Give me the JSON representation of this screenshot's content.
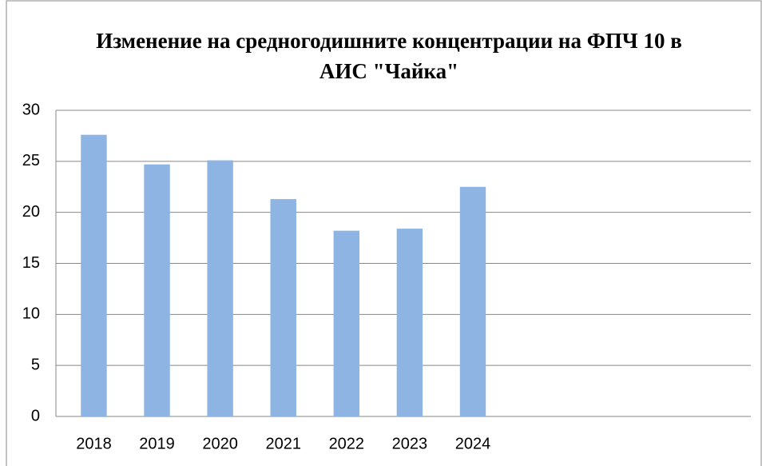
{
  "chart_data": {
    "type": "bar",
    "title": "Изменение на средногодишните концентрации на ФПЧ 10 в АИС \"Чайка\"",
    "categories": [
      "2018",
      "2019",
      "2020",
      "2021",
      "2022",
      "2023",
      "2024",
      null,
      null,
      null,
      null
    ],
    "values": [
      27.6,
      24.7,
      25.1,
      21.3,
      18.2,
      18.4,
      22.5,
      null,
      null,
      null,
      null
    ],
    "color": "#8eb4e3",
    "ylim": [
      0,
      30
    ],
    "yticks": [
      0,
      5,
      10,
      15,
      20,
      25,
      30
    ],
    "grid": true
  }
}
